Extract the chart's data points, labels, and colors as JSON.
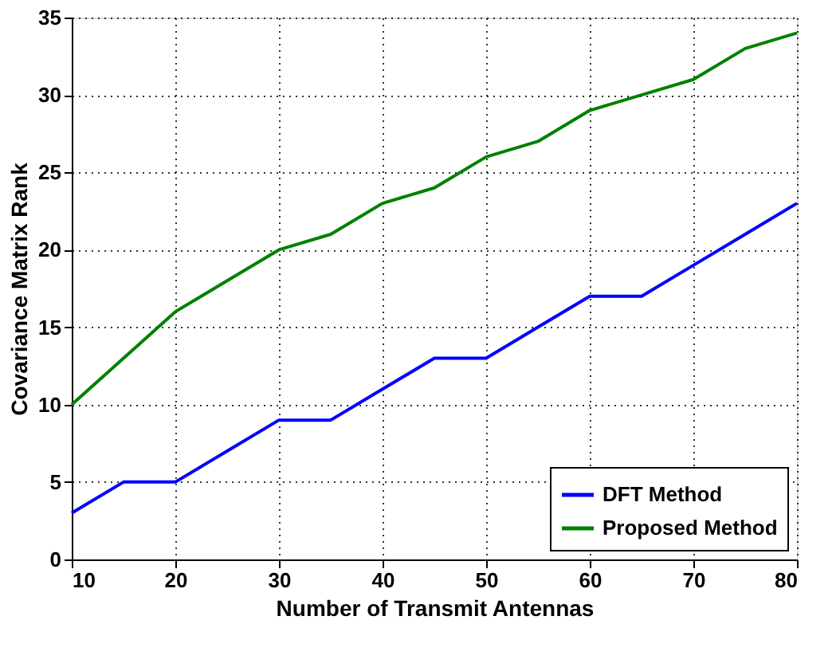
{
  "chart_data": {
    "type": "line",
    "xlabel": "Number of Transmit Antennas",
    "ylabel": "Covariance Matrix Rank",
    "x": [
      10,
      15,
      20,
      25,
      30,
      35,
      40,
      45,
      50,
      55,
      60,
      65,
      70,
      75,
      80
    ],
    "series": [
      {
        "name": "DFT Method",
        "color": "#0000ff",
        "values": [
          3,
          5,
          5,
          7,
          9,
          9,
          11,
          13,
          13,
          15,
          17,
          17,
          19,
          21,
          23
        ]
      },
      {
        "name": "Proposed Method",
        "color": "#008000",
        "values": [
          10,
          13,
          16,
          18,
          20,
          21,
          23,
          24,
          26,
          27,
          29,
          30,
          31,
          33,
          34
        ]
      }
    ],
    "xlim": [
      10,
      80
    ],
    "xticks": [
      10,
      20,
      30,
      40,
      50,
      60,
      70,
      80
    ],
    "ylim": [
      0,
      35
    ],
    "yticks": [
      0,
      5,
      10,
      15,
      20,
      25,
      30,
      35
    ],
    "grid": true,
    "legend": "bottom right",
    "marker": "none",
    "line_style": "solid"
  }
}
